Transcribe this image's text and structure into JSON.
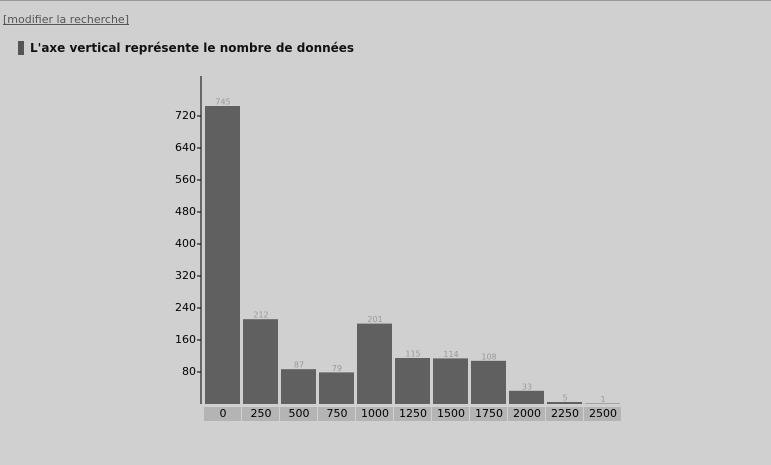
{
  "link": "[modifier la recherche]",
  "chart_data": {
    "type": "bar",
    "title": "L'axe vertical représente le nombre de données",
    "categories": [
      "0",
      "250",
      "500",
      "750",
      "1000",
      "1250",
      "1500",
      "1750",
      "2000",
      "2250",
      "2500"
    ],
    "values": [
      745,
      212,
      87,
      79,
      201,
      115,
      114,
      108,
      33,
      5,
      1
    ],
    "color": "#606060",
    "ylim": [
      0,
      820
    ],
    "yticks": [
      80,
      160,
      240,
      320,
      400,
      480,
      560,
      640,
      720
    ]
  }
}
